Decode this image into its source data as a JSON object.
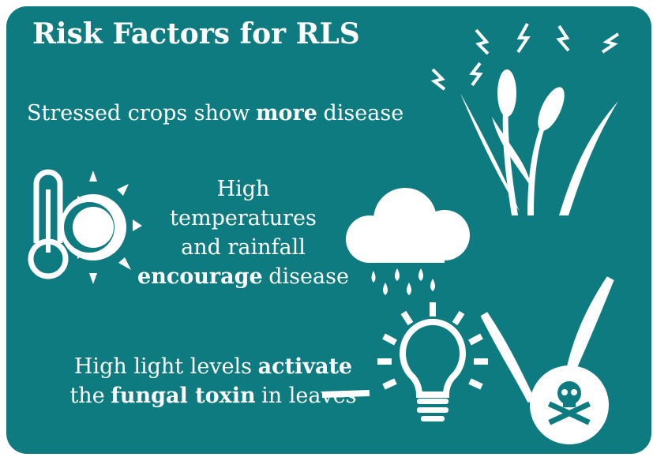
{
  "title": "Risk Factors for RLS",
  "facts": [
    {
      "lines": [
        [
          {
            "text": "Stressed crops show"
          },
          {
            "text": "more",
            "bold": true
          },
          {
            "text": "disease"
          }
        ]
      ]
    },
    {
      "lines": [
        [
          {
            "text": "High"
          }
        ],
        [
          {
            "text": "temperatures"
          }
        ],
        [
          {
            "text": "and rainfall"
          }
        ],
        [
          {
            "text": "encourage",
            "bold": true
          },
          {
            "text": "disease"
          }
        ]
      ]
    },
    {
      "lines": [
        [
          {
            "text": "High light levels"
          },
          {
            "text": "activate",
            "bold": true
          }
        ],
        [
          {
            "text": "the"
          },
          {
            "text": "fungal toxin",
            "bold": true
          },
          {
            "text": "in leaves"
          }
        ]
      ]
    }
  ]
}
